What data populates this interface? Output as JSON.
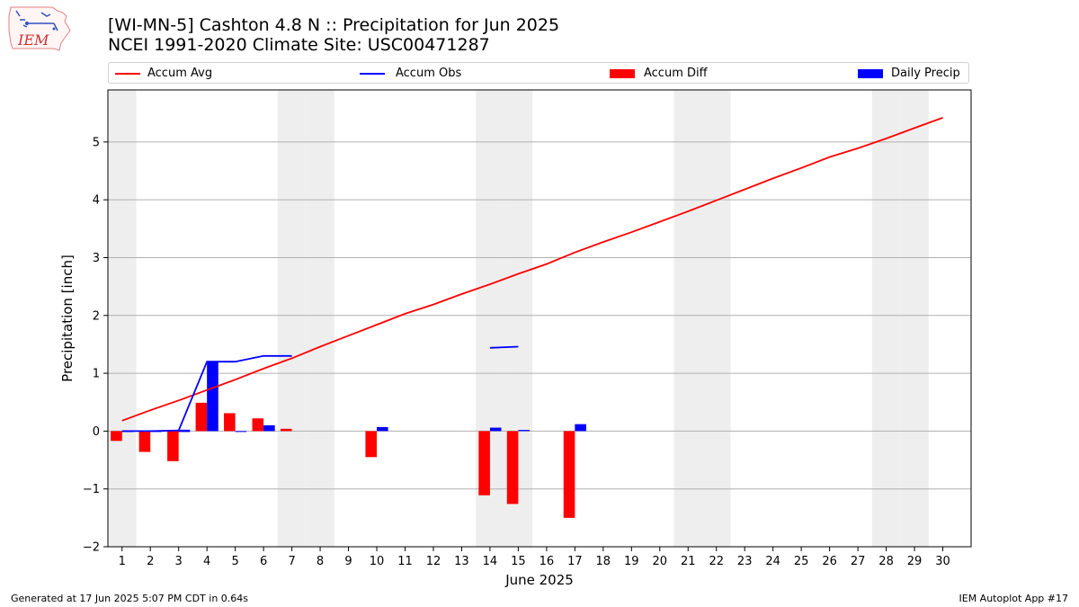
{
  "title_line1": "[WI-MN-5] Cashton 4.8 N :: Precipitation for Jun 2025",
  "title_line2": "NCEI 1991-2020 Climate Site: USC00471287",
  "logo_text": "IEM",
  "footer_left": "Generated at 17 Jun 2025 5:07 PM CDT in 0.64s",
  "footer_right": "IEM Autoplot App #17",
  "legend": [
    {
      "label": "Accum Avg",
      "kind": "line",
      "color": "#ff0000"
    },
    {
      "label": "Accum Obs",
      "kind": "line",
      "color": "#0000ff"
    },
    {
      "label": "Accum Diff",
      "kind": "bar",
      "color": "#ff0000"
    },
    {
      "label": "Daily Precip",
      "kind": "bar",
      "color": "#0000ff"
    }
  ],
  "colors": {
    "avg": "#ff0000",
    "obs": "#0000ff",
    "diff": "#ff0000",
    "daily": "#0000ff",
    "weekend": "#eeeeee",
    "grid": "#b0b0b0"
  },
  "chart_data": {
    "type": "bar",
    "xlabel": "June 2025",
    "ylabel": "Precipitation [inch]",
    "xlim": [
      0.5,
      31.0
    ],
    "ylim": [
      -2.0,
      5.9
    ],
    "yticks": [
      -2,
      -1,
      0,
      1,
      2,
      3,
      4,
      5
    ],
    "ytick_labels": [
      "−2",
      "−1",
      "0",
      "1",
      "2",
      "3",
      "4",
      "5"
    ],
    "days": [
      1,
      2,
      3,
      4,
      5,
      6,
      7,
      8,
      9,
      10,
      11,
      12,
      13,
      14,
      15,
      16,
      17,
      18,
      19,
      20,
      21,
      22,
      23,
      24,
      25,
      26,
      27,
      28,
      29,
      30
    ],
    "weekend_days": [
      1,
      7,
      8,
      14,
      15,
      21,
      22,
      28,
      29
    ],
    "grid": true,
    "legend_position": "top",
    "series": [
      {
        "name": "Accum Avg",
        "kind": "line",
        "values": [
          0.18,
          0.36,
          0.53,
          0.71,
          0.89,
          1.08,
          1.26,
          1.46,
          1.65,
          1.84,
          2.03,
          2.19,
          2.37,
          2.54,
          2.72,
          2.89,
          3.09,
          3.27,
          3.44,
          3.62,
          3.8,
          3.99,
          4.18,
          4.37,
          4.55,
          4.74,
          4.89,
          5.06,
          5.24,
          5.42
        ]
      },
      {
        "name": "Accum Obs",
        "kind": "line",
        "values": [
          0.0,
          0.0,
          0.01,
          1.2,
          1.2,
          1.3,
          1.3,
          null,
          null,
          null,
          null,
          null,
          null,
          1.44,
          1.46,
          null,
          null,
          null,
          null,
          null,
          null,
          null,
          null,
          null,
          null,
          null,
          null,
          null,
          null,
          null
        ],
        "extra_segments": [
          {
            "from_day": 3,
            "to_day": 3.4,
            "value": 0.01
          }
        ]
      },
      {
        "name": "Accum Diff",
        "kind": "bar",
        "values": [
          -0.17,
          -0.36,
          -0.52,
          0.49,
          0.31,
          0.22,
          0.04,
          null,
          null,
          -0.45,
          null,
          null,
          null,
          -1.11,
          -1.26,
          null,
          -1.5,
          null,
          null,
          null,
          null,
          null,
          null,
          null,
          null,
          null,
          null,
          null,
          null,
          null
        ]
      },
      {
        "name": "Daily Precip",
        "kind": "bar",
        "values": [
          0.0,
          0.0,
          0.0,
          1.19,
          0.0,
          0.1,
          null,
          null,
          null,
          0.07,
          null,
          null,
          null,
          0.06,
          0.02,
          null,
          0.12,
          null,
          null,
          null,
          null,
          null,
          null,
          null,
          null,
          null,
          null,
          null,
          null,
          null
        ]
      }
    ]
  }
}
